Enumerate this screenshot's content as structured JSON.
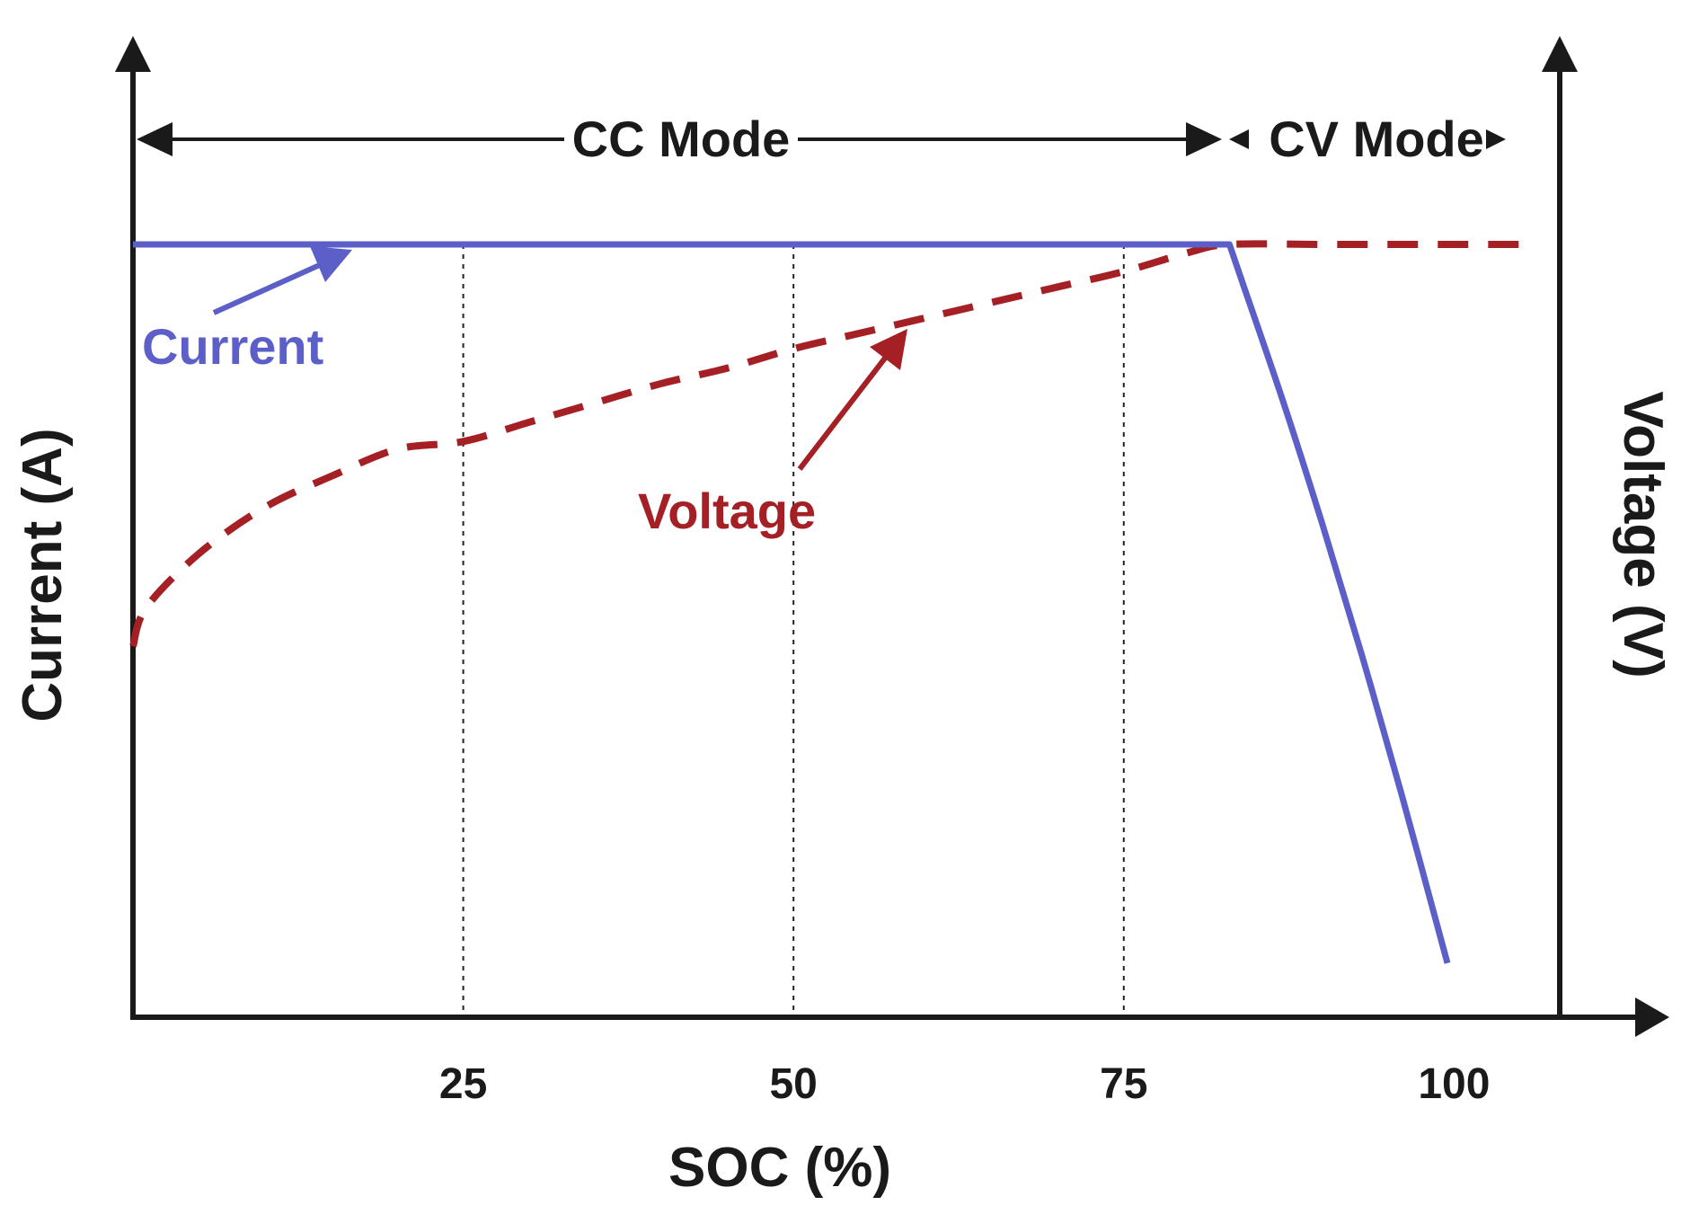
{
  "chart_data": {
    "type": "line",
    "xlabel": "SOC (%)",
    "ylabel_left": "Current (A)",
    "ylabel_right": "Voltage (V)",
    "x_ticks": [
      25,
      50,
      75,
      100
    ],
    "xlim": [
      0,
      108
    ],
    "ylim": [
      0,
      100
    ],
    "grid_x": [
      25,
      50,
      75
    ],
    "modes": [
      {
        "label": "CC Mode",
        "x_start": 0,
        "x_end": 83
      },
      {
        "label": "CV Mode",
        "x_start": 83,
        "x_end": 104
      }
    ],
    "series": [
      {
        "name": "Current",
        "axis": "left",
        "color": "#5b5fc7",
        "style": "solid",
        "x": [
          0,
          83,
          84,
          87,
          90,
          93,
          96,
          99.5
        ],
        "y": [
          100,
          100,
          95,
          80,
          64,
          47,
          29,
          7
        ]
      },
      {
        "name": "Voltage",
        "axis": "right",
        "color": "#a42025",
        "style": "dashed",
        "x": [
          0,
          1,
          5,
          10,
          15,
          20,
          25,
          30,
          35,
          40,
          45,
          50,
          55,
          60,
          65,
          70,
          75,
          80,
          83,
          90,
          95,
          100,
          105
        ],
        "y": [
          48,
          53,
          60,
          66,
          70,
          73.5,
          74.5,
          77,
          79.5,
          82,
          84,
          86.5,
          88.5,
          90.5,
          92.5,
          94.5,
          96.5,
          99,
          100,
          100,
          100,
          100,
          100
        ]
      }
    ],
    "annotations": [
      {
        "text": "Current",
        "target_series": "Current",
        "color": "#5b5fc7"
      },
      {
        "text": "Voltage",
        "target_series": "Voltage",
        "color": "#a42025"
      }
    ]
  }
}
